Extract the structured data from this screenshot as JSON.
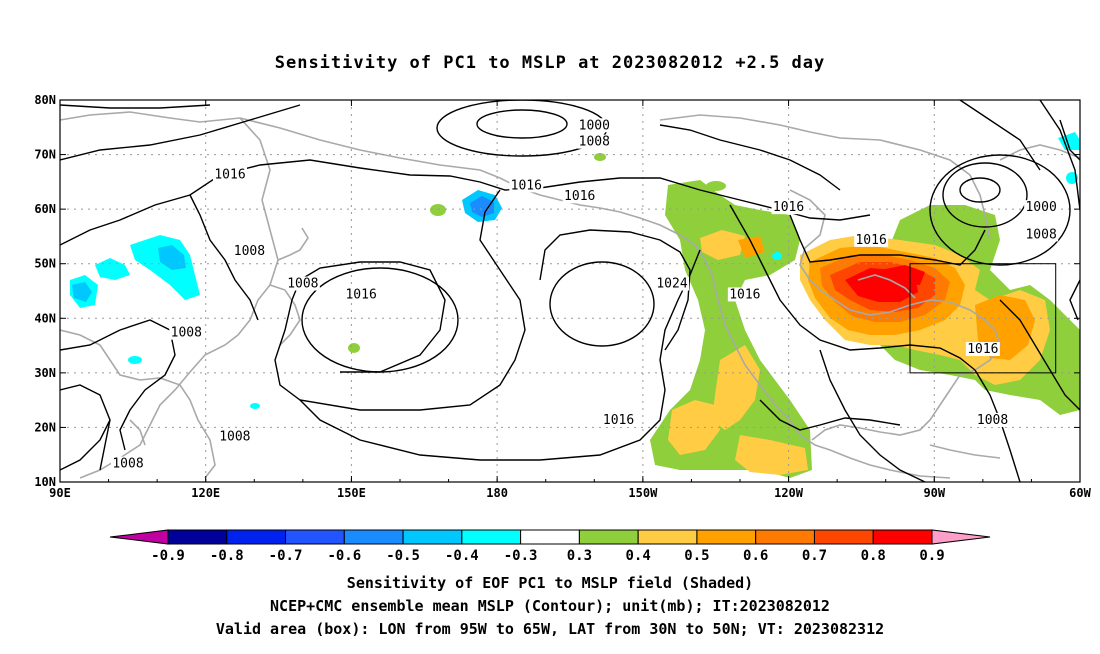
{
  "title": "Sensitivity of PC1 to MSLP at 2023082012 +2.5 day",
  "map": {
    "lon_range": [
      90,
      300
    ],
    "lat_range": [
      10,
      80
    ],
    "lat_ticks": [
      {
        "value": 80,
        "label": "80N"
      },
      {
        "value": 70,
        "label": "70N"
      },
      {
        "value": 60,
        "label": "60N"
      },
      {
        "value": 50,
        "label": "50N"
      },
      {
        "value": 40,
        "label": "40N"
      },
      {
        "value": 30,
        "label": "30N"
      },
      {
        "value": 20,
        "label": "20N"
      },
      {
        "value": 10,
        "label": "10N"
      }
    ],
    "lon_ticks": [
      {
        "value": 90,
        "label": "90E"
      },
      {
        "value": 120,
        "label": "120E"
      },
      {
        "value": 150,
        "label": "150E"
      },
      {
        "value": 180,
        "label": "180"
      },
      {
        "value": 210,
        "label": "150W"
      },
      {
        "value": 240,
        "label": "120W"
      },
      {
        "value": 270,
        "label": "90W"
      },
      {
        "value": 300,
        "label": "60W"
      }
    ],
    "valid_box": {
      "lon": [
        265,
        295
      ],
      "lat": [
        30,
        50
      ]
    },
    "colors": {
      "neg_09": "#c000a0",
      "neg_08": "#00009a",
      "neg_07": "#0022ee",
      "neg_06": "#2255ff",
      "neg_05": "#1a8cff",
      "neg_04": "#00c8ff",
      "neg_03": "#00ffff",
      "zero": "#ffffff",
      "pos_03": "#8fcf3c",
      "pos_04": "#ffcc44",
      "pos_05": "#ffa200",
      "pos_06": "#ff7a00",
      "pos_07": "#ff4600",
      "pos_08": "#ff0000",
      "pos_09": "#ff9ec8",
      "coast": "#a9a9a9",
      "contour": "#000000"
    },
    "contour_labels": [
      {
        "text": "1000",
        "lon": 200,
        "lat": 75
      },
      {
        "text": "1008",
        "lon": 200,
        "lat": 72
      },
      {
        "text": "1016",
        "lon": 125,
        "lat": 66
      },
      {
        "text": "1016",
        "lon": 186,
        "lat": 64
      },
      {
        "text": "1016",
        "lon": 197,
        "lat": 62
      },
      {
        "text": "1016",
        "lon": 240,
        "lat": 60
      },
      {
        "text": "1016",
        "lon": 257,
        "lat": 54
      },
      {
        "text": "1008",
        "lon": 129,
        "lat": 52
      },
      {
        "text": "1008",
        "lon": 140,
        "lat": 46
      },
      {
        "text": "1016",
        "lon": 152,
        "lat": 44
      },
      {
        "text": "1024",
        "lon": 216,
        "lat": 46
      },
      {
        "text": "1016",
        "lon": 231,
        "lat": 44
      },
      {
        "text": "1008",
        "lon": 116,
        "lat": 37
      },
      {
        "text": "1016",
        "lon": 280,
        "lat": 34
      },
      {
        "text": "1016",
        "lon": 205,
        "lat": 21
      },
      {
        "text": "1008",
        "lon": 282,
        "lat": 21
      },
      {
        "text": "1008",
        "lon": 126,
        "lat": 18
      },
      {
        "text": "1008",
        "lon": 104,
        "lat": 13
      },
      {
        "text": "1000",
        "lon": 292,
        "lat": 60
      },
      {
        "text": "1008",
        "lon": 292,
        "lat": 55
      }
    ]
  },
  "colorbar": {
    "labels": [
      "-0.9",
      "-0.8",
      "-0.7",
      "-0.6",
      "-0.5",
      "-0.4",
      "-0.3",
      "0.3",
      "0.4",
      "0.5",
      "0.6",
      "0.7",
      "0.8",
      "0.9"
    ],
    "boxes": [
      "#00009a",
      "#0022ee",
      "#2255ff",
      "#1a8cff",
      "#00c8ff",
      "#00ffff",
      "#ffffff",
      "#8fcf3c",
      "#ffcc44",
      "#ffa200",
      "#ff7a00",
      "#ff4600",
      "#ff0000"
    ],
    "left_arrow": "#c000a0",
    "right_arrow": "#ff9ec8"
  },
  "captions": {
    "line1": "Sensitivity of EOF PC1 to MSLP field (Shaded)",
    "line2": "NCEP+CMC ensemble mean MSLP (Contour); unit(mb); IT:2023082012",
    "line3": "Valid area (box): LON from 95W to 65W, LAT from 30N to 50N; VT: 2023082312"
  }
}
